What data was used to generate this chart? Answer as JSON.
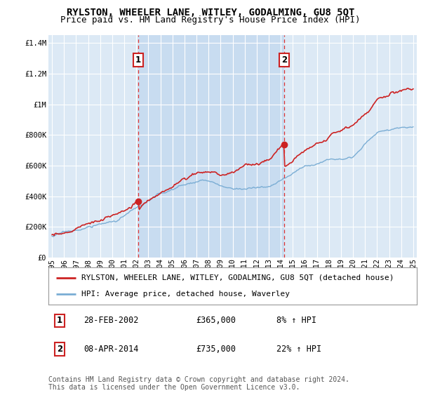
{
  "title": "RYLSTON, WHEELER LANE, WITLEY, GODALMING, GU8 5QT",
  "subtitle": "Price paid vs. HM Land Registry's House Price Index (HPI)",
  "ylim": [
    0,
    1450000
  ],
  "yticks": [
    0,
    200000,
    400000,
    600000,
    800000,
    1000000,
    1200000,
    1400000
  ],
  "ytick_labels": [
    "£0",
    "£200K",
    "£400K",
    "£600K",
    "£800K",
    "£1M",
    "£1.2M",
    "£1.4M"
  ],
  "sale1_date": 2002.16,
  "sale1_price": 365000,
  "sale2_date": 2014.27,
  "sale2_price": 735000,
  "red_line_color": "#cc2222",
  "blue_line_color": "#7aadd4",
  "dashed_line_color": "#dd3333",
  "shade_color": "#c8dcf0",
  "plot_bg_color": "#dce9f5",
  "legend_line1": "RYLSTON, WHEELER LANE, WITLEY, GODALMING, GU8 5QT (detached house)",
  "legend_line2": "HPI: Average price, detached house, Waverley",
  "footer": "Contains HM Land Registry data © Crown copyright and database right 2024.\nThis data is licensed under the Open Government Licence v3.0.",
  "title_fontsize": 10,
  "subtitle_fontsize": 9,
  "tick_fontsize": 7.5,
  "legend_fontsize": 8,
  "annotation_fontsize": 8.5,
  "footer_fontsize": 7
}
